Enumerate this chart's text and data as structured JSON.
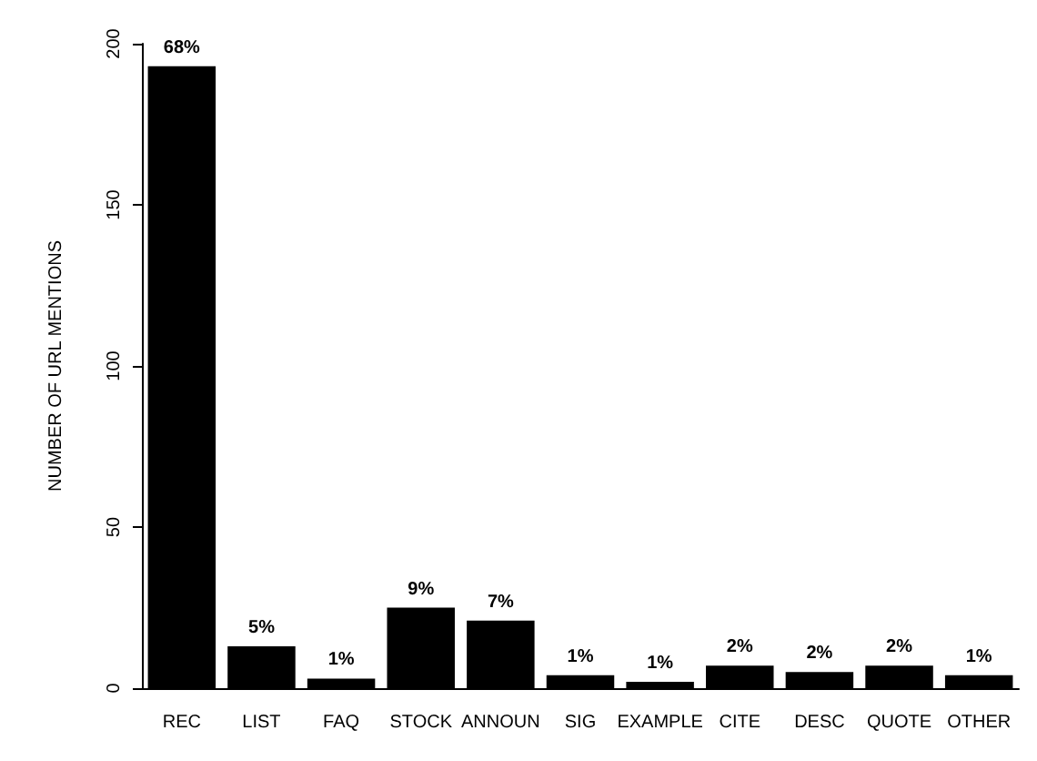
{
  "chart_data": {
    "type": "bar",
    "ylabel": "NUMBER OF URL MENTIONS",
    "categories": [
      "REC",
      "LIST",
      "FAQ",
      "STOCK",
      "ANNOUN",
      "SIG",
      "EXAMPLE",
      "CITE",
      "DESC",
      "QUOTE",
      "OTHER"
    ],
    "values": [
      193,
      13,
      3,
      25,
      21,
      4,
      2,
      7,
      5,
      7,
      4
    ],
    "annotations": [
      {
        "text": "68%",
        "x": "REC",
        "y": 193
      },
      {
        "text": "5%",
        "x": "LIST",
        "y": 13
      },
      {
        "text": "1%",
        "x": "FAQ",
        "y": 3
      },
      {
        "text": "9%",
        "x": "STOCK",
        "y": 25
      },
      {
        "text": "7%",
        "x": "ANNOUN",
        "y": 21
      },
      {
        "text": "1%",
        "x": "SIG",
        "y": 4
      },
      {
        "text": "1%",
        "x": "EXAMPLE",
        "y": 2
      },
      {
        "text": "2%",
        "x": "CITE",
        "y": 7
      },
      {
        "text": "2%",
        "x": "DESC",
        "y": 5
      },
      {
        "text": "2%",
        "x": "QUOTE",
        "y": 7
      },
      {
        "text": "1%",
        "x": "OTHER",
        "y": 4
      }
    ],
    "color": "#000000",
    "ylim": [
      0,
      200
    ],
    "yticks": [
      0,
      50,
      100,
      150,
      200
    ],
    "grid": false
  }
}
